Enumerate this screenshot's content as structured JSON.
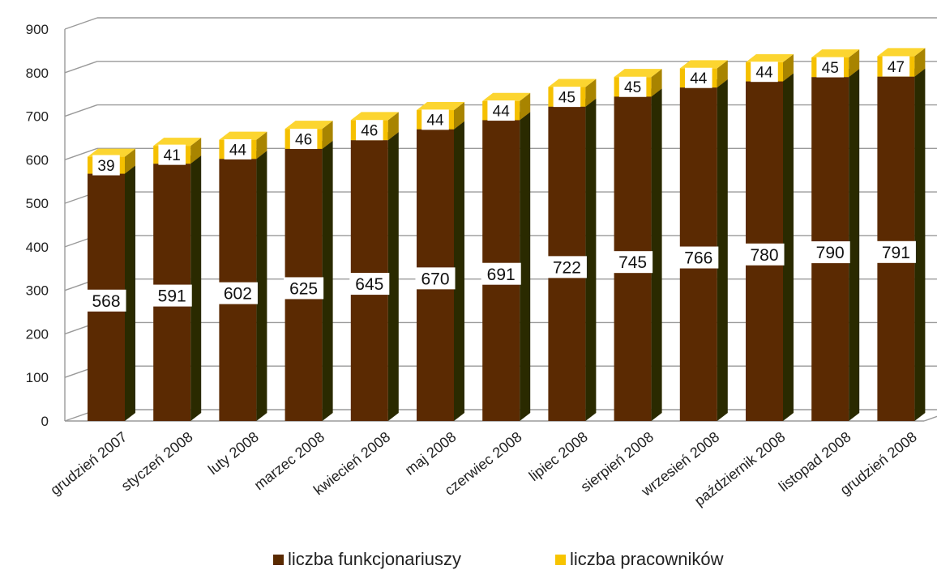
{
  "chart_data": {
    "type": "bar",
    "stacked": true,
    "three_d": true,
    "categories": [
      "grudzień 2007",
      "styczeń 2008",
      "luty 2008",
      "marzec 2008",
      "kwiecień 2008",
      "maj 2008",
      "czerwiec 2008",
      "lipiec 2008",
      "sierpień 2008",
      "wrzesień 2008",
      "październik 2008",
      "listopad 2008",
      "grudzień 2008"
    ],
    "series": [
      {
        "name": "liczba funkcjonariuszy",
        "color": "#5a2a00",
        "values": [
          568,
          591,
          602,
          625,
          645,
          670,
          691,
          722,
          745,
          766,
          780,
          790,
          791
        ]
      },
      {
        "name": "liczba pracowników",
        "color": "#f7c400",
        "values": [
          39,
          41,
          44,
          46,
          46,
          44,
          44,
          45,
          45,
          44,
          44,
          45,
          47
        ]
      }
    ],
    "ylim": [
      0,
      900
    ],
    "yticks": [
      "0",
      "100",
      "200",
      "300",
      "400",
      "500",
      "600",
      "700",
      "800",
      "900"
    ],
    "grid": true,
    "legend_position": "bottom"
  }
}
